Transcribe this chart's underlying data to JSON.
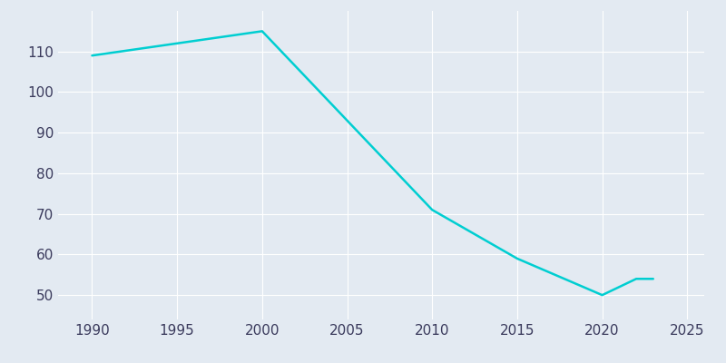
{
  "years": [
    1990,
    1995,
    2000,
    2010,
    2015,
    2020,
    2022,
    2023
  ],
  "population": [
    109,
    112,
    115,
    71,
    59,
    50,
    54,
    54
  ],
  "line_color": "#00CED1",
  "background_color": "#E3EAF2",
  "grid_color": "#FFFFFF",
  "text_color": "#3A3A5C",
  "xlim": [
    1988,
    2026
  ],
  "ylim": [
    44,
    120
  ],
  "xticks": [
    1990,
    1995,
    2000,
    2005,
    2010,
    2015,
    2020,
    2025
  ],
  "yticks": [
    50,
    60,
    70,
    80,
    90,
    100,
    110
  ],
  "linewidth": 1.8,
  "figsize": [
    8.0,
    4.0
  ],
  "dpi": 100
}
